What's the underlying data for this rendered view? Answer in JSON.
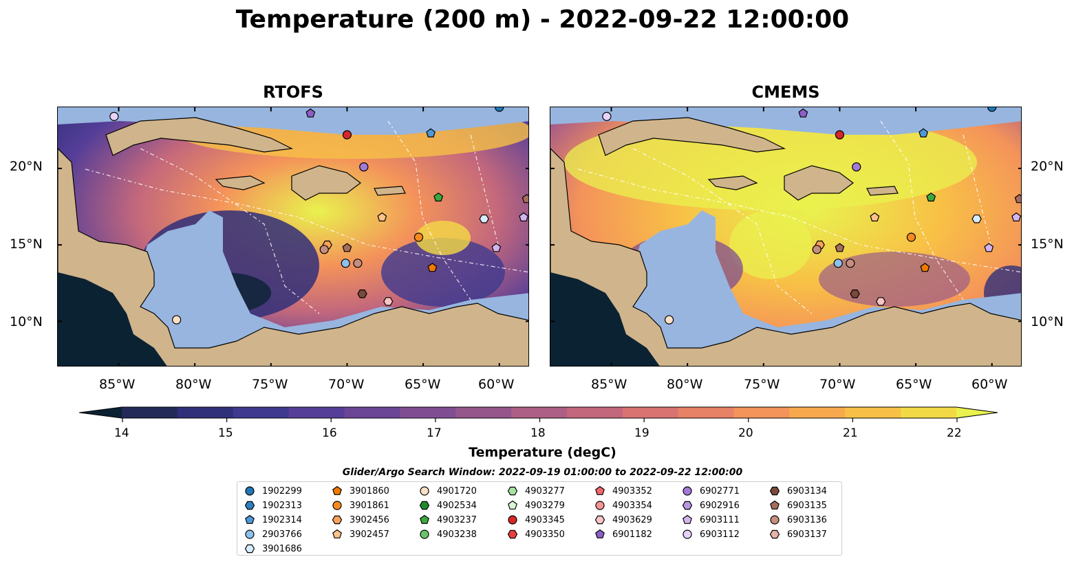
{
  "title": "Temperature (200 m) - 2022-09-22 12:00:00",
  "panels": [
    {
      "title": "RTOFS"
    },
    {
      "title": "CMEMS"
    }
  ],
  "axes": {
    "x_ticks": [
      "85°W",
      "80°W",
      "75°W",
      "70°W",
      "65°W",
      "60°W"
    ],
    "y_ticks": [
      "20°N",
      "15°N",
      "10°N"
    ]
  },
  "colorbar": {
    "label": "Temperature (degC)",
    "ticks": [
      "14",
      "15",
      "16",
      "17",
      "18",
      "19",
      "20",
      "21",
      "22"
    ],
    "colors": [
      "#0b2233",
      "#222a57",
      "#302f7a",
      "#3f3a8f",
      "#553e98",
      "#6b4596",
      "#7f4e92",
      "#95568c",
      "#ad5f85",
      "#c3687c",
      "#d87372",
      "#e88266",
      "#f4935a",
      "#f8a94e",
      "#f8c046",
      "#f2d946",
      "#e9f24e"
    ]
  },
  "legend": {
    "title": "Glider/Argo Search Window: 2022-09-19 01:00:00 to 2022-09-22 12:00:00",
    "entries": [
      {
        "label": "1902299",
        "marker": "circle",
        "color": "#1f77b4"
      },
      {
        "label": "1902313",
        "marker": "hexagon",
        "color": "#2f7fc1"
      },
      {
        "label": "1902314",
        "marker": "pentagon",
        "color": "#4f97d6"
      },
      {
        "label": "2903766",
        "marker": "circle",
        "color": "#8ec1ec"
      },
      {
        "label": "3901686",
        "marker": "hexagon",
        "color": "#d6ecff"
      },
      {
        "label": "3901860",
        "marker": "pentagon",
        "color": "#f07a00"
      },
      {
        "label": "3901861",
        "marker": "circle",
        "color": "#f58a1f"
      },
      {
        "label": "3902456",
        "marker": "hexagon",
        "color": "#fba25a"
      },
      {
        "label": "3902457",
        "marker": "pentagon",
        "color": "#fdc38a"
      },
      {
        "label": "4901720",
        "marker": "circle",
        "color": "#fde0c5"
      },
      {
        "label": "4902534",
        "marker": "hexagon",
        "color": "#1e8c2a"
      },
      {
        "label": "4903237",
        "marker": "pentagon",
        "color": "#3aa83f"
      },
      {
        "label": "4903238",
        "marker": "circle",
        "color": "#6bc46b"
      },
      {
        "label": "4903277",
        "marker": "hexagon",
        "color": "#a6e3a0"
      },
      {
        "label": "4903279",
        "marker": "pentagon",
        "color": "#d9f6d3"
      },
      {
        "label": "4903345",
        "marker": "circle",
        "color": "#d62728"
      },
      {
        "label": "4903350",
        "marker": "hexagon",
        "color": "#e8403f"
      },
      {
        "label": "4903352",
        "marker": "pentagon",
        "color": "#f2666a"
      },
      {
        "label": "4903354",
        "marker": "circle",
        "color": "#f59496"
      },
      {
        "label": "4903629",
        "marker": "hexagon",
        "color": "#fac4c4"
      },
      {
        "label": "6901182",
        "marker": "pentagon",
        "color": "#8c5fc6"
      },
      {
        "label": "6902771",
        "marker": "circle",
        "color": "#a37ad6"
      },
      {
        "label": "6902916",
        "marker": "hexagon",
        "color": "#b995e3"
      },
      {
        "label": "6903111",
        "marker": "pentagon",
        "color": "#d3b5ef"
      },
      {
        "label": "6903112",
        "marker": "circle",
        "color": "#e6d2fa"
      },
      {
        "label": "6903134",
        "marker": "hexagon",
        "color": "#7a4a3a"
      },
      {
        "label": "6903135",
        "marker": "pentagon",
        "color": "#a46d5c"
      },
      {
        "label": "6903136",
        "marker": "circle",
        "color": "#c48e80"
      },
      {
        "label": "6903137",
        "marker": "hexagon",
        "color": "#e6b2a8"
      }
    ]
  },
  "chart_data": {
    "type": "heatmap",
    "title": "Temperature (200 m) - 2022-09-22 12:00:00",
    "variable": "Temperature (degC)",
    "depth_m": 200,
    "time": "2022-09-22 12:00:00",
    "models": [
      "RTOFS",
      "CMEMS"
    ],
    "lon_range": [
      -89,
      -58
    ],
    "lat_range": [
      7,
      24
    ],
    "value_range": [
      14,
      22
    ],
    "colormap": "thermal",
    "floats": [
      {
        "id": "1902299",
        "lon": -60,
        "lat": 24
      },
      {
        "id": "1902314",
        "lon": -64.5,
        "lat": 22.3
      },
      {
        "id": "6903112",
        "lon": -85.3,
        "lat": 23.4
      },
      {
        "id": "6901182",
        "lon": -72.4,
        "lat": 23.6
      },
      {
        "id": "4903345",
        "lon": -70,
        "lat": 22.2
      },
      {
        "id": "6902771",
        "lon": -68.9,
        "lat": 20.1
      },
      {
        "id": "4903237",
        "lon": -64,
        "lat": 18.1
      },
      {
        "id": "3902457",
        "lon": -67.7,
        "lat": 16.8
      },
      {
        "id": "3901686",
        "lon": -61,
        "lat": 16.7
      },
      {
        "id": "6903111",
        "lon": -58.4,
        "lat": 16.8
      },
      {
        "id": "6903135",
        "lon": -58.2,
        "lat": 18.0
      },
      {
        "id": "3901861",
        "lon": -65.3,
        "lat": 15.5
      },
      {
        "id": "6903111",
        "lon": -60.2,
        "lat": 14.8
      },
      {
        "id": "3901860",
        "lon": -64.4,
        "lat": 13.5
      },
      {
        "id": "3902456",
        "lon": -71.3,
        "lat": 15.0
      },
      {
        "id": "6903136",
        "lon": -71.5,
        "lat": 14.7
      },
      {
        "id": "6903135",
        "lon": -70,
        "lat": 14.8
      },
      {
        "id": "2903766",
        "lon": -70.1,
        "lat": 13.8
      },
      {
        "id": "6903136",
        "lon": -69.3,
        "lat": 13.8
      },
      {
        "id": "6903134",
        "lon": -69,
        "lat": 11.8
      },
      {
        "id": "4903629",
        "lon": -67.3,
        "lat": 11.3
      },
      {
        "id": "4901720",
        "lon": -81.2,
        "lat": 10.1
      }
    ]
  }
}
